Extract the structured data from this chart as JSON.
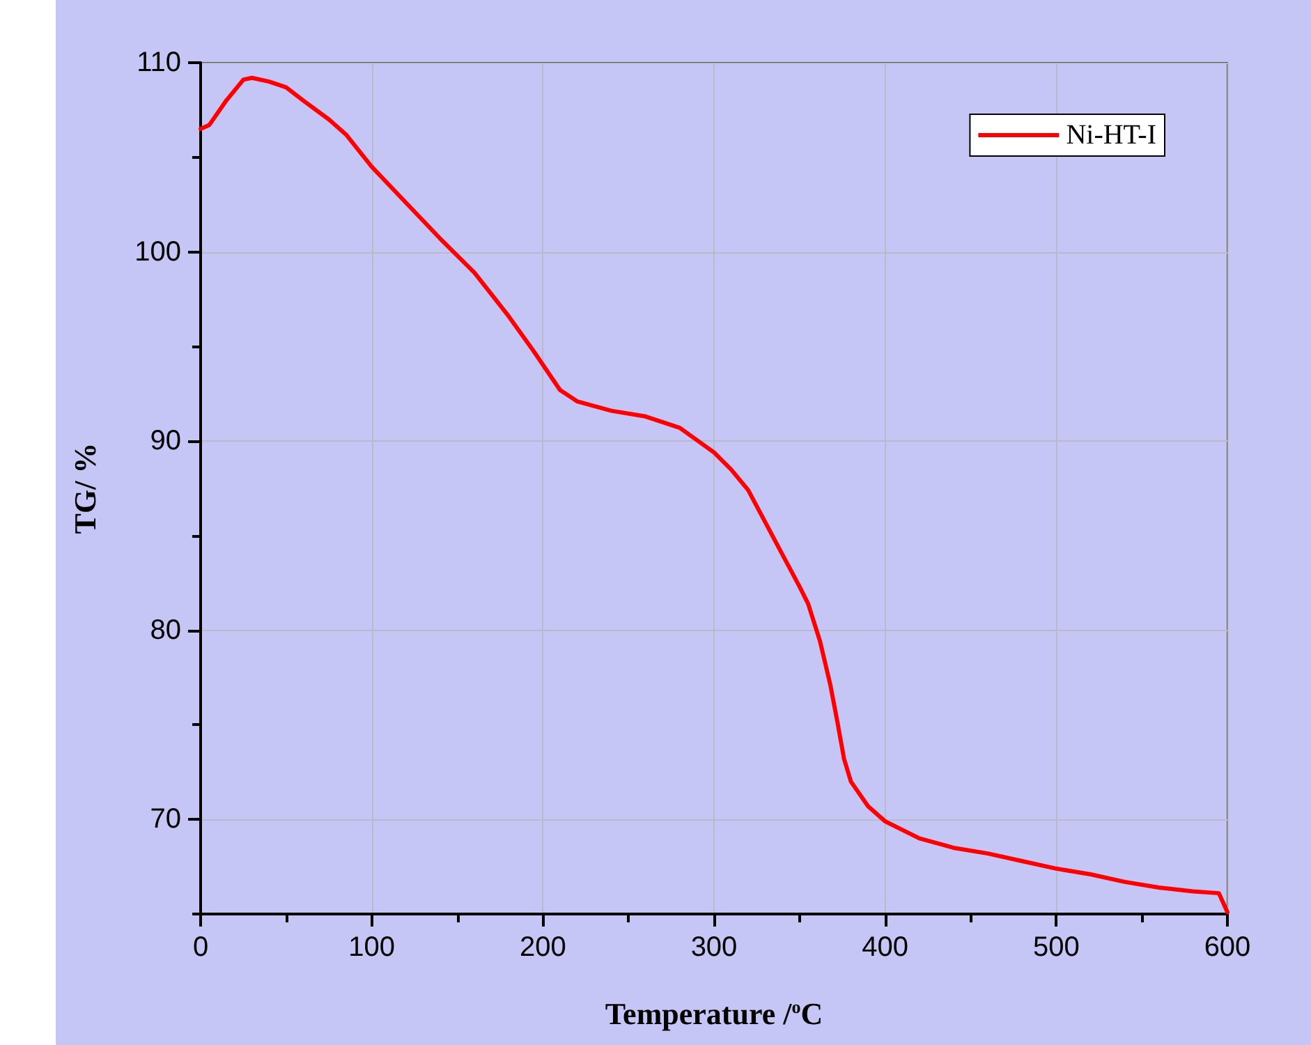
{
  "chart_data": {
    "type": "line",
    "xlabel": "Temperature /$^{o}$C",
    "ylabel": "TG/ %",
    "xlim": [
      0,
      600
    ],
    "xticks": [
      0,
      100,
      200,
      300,
      400,
      500,
      600
    ],
    "ylim": [
      65,
      110
    ],
    "yticks": [
      70,
      80,
      90,
      100,
      110
    ],
    "grid": true,
    "legend": "top right",
    "marker": "none",
    "line_style": "solid",
    "series": [
      {
        "name": "Ni-HT-I",
        "color": "#ff0000",
        "x": [
          0,
          5,
          15,
          25,
          30,
          40,
          50,
          60,
          75,
          85,
          100,
          120,
          140,
          160,
          180,
          195,
          210,
          220,
          240,
          260,
          280,
          300,
          310,
          320,
          330,
          340,
          350,
          355,
          362,
          368,
          372,
          376,
          380,
          390,
          400,
          420,
          440,
          460,
          480,
          500,
          520,
          540,
          560,
          580,
          595,
          600
        ],
        "values": [
          106.5,
          106.7,
          108.0,
          109.1,
          109.2,
          109.0,
          108.7,
          108.0,
          107.0,
          106.2,
          104.5,
          102.6,
          100.7,
          98.9,
          96.6,
          94.7,
          92.7,
          92.1,
          91.6,
          91.3,
          90.7,
          89.4,
          88.5,
          87.4,
          85.7,
          84.0,
          82.3,
          81.4,
          79.4,
          77.1,
          75.2,
          73.2,
          72.0,
          70.7,
          69.9,
          69.0,
          68.5,
          68.2,
          67.8,
          67.4,
          67.1,
          66.7,
          66.4,
          66.2,
          66.1,
          65.1
        ]
      }
    ]
  }
}
